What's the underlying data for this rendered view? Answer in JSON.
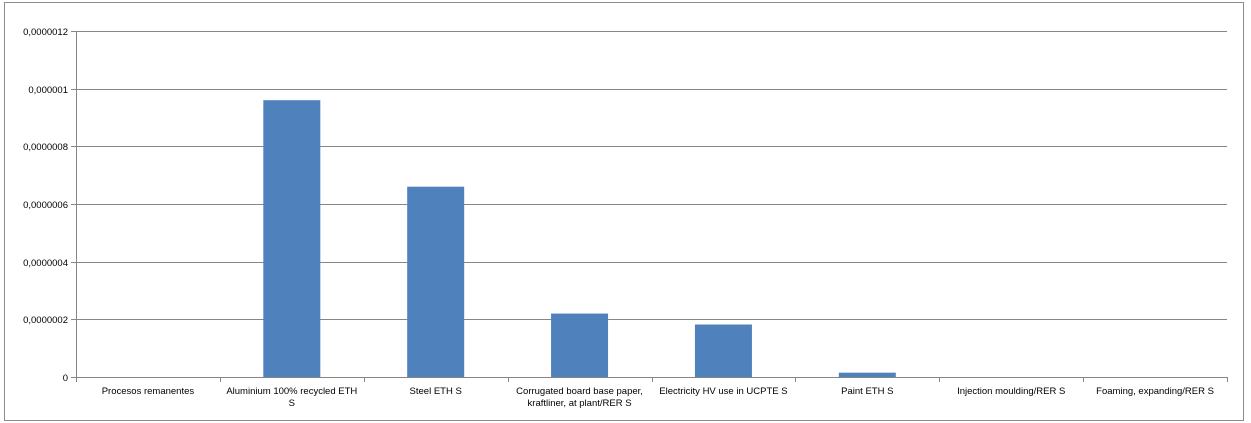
{
  "chart_data": {
    "type": "bar",
    "categories": [
      [
        "Procesos remanentes"
      ],
      [
        "Aluminium 100% recycled ETH",
        "S"
      ],
      [
        "Steel ETH S"
      ],
      [
        "Corrugated board base paper,",
        "kraftliner, at plant/RER S"
      ],
      [
        "Electricity HV use in UCPTE S"
      ],
      [
        "Paint ETH S"
      ],
      [
        "Injection moulding/RER S"
      ],
      [
        "Foaming, expanding/RER S"
      ]
    ],
    "values": [
      0,
      9.6e-07,
      6.6e-07,
      2.2e-07,
      1.82e-07,
      1.5e-08,
      0,
      0
    ],
    "ylim": [
      0,
      1.2e-06
    ],
    "yticks": [
      {
        "value": 0,
        "label": "0"
      },
      {
        "value": 2e-07,
        "label": "0,0000002"
      },
      {
        "value": 4e-07,
        "label": "0,0000004"
      },
      {
        "value": 6e-07,
        "label": "0,0000006"
      },
      {
        "value": 8e-07,
        "label": "0,0000008"
      },
      {
        "value": 1e-06,
        "label": "0,000001"
      },
      {
        "value": 1.2e-06,
        "label": "0,0000012"
      }
    ],
    "grid": true,
    "legend": "none",
    "bar_color": "#4f81bd",
    "grid_color": "#868686",
    "axis_color": "#868686"
  }
}
